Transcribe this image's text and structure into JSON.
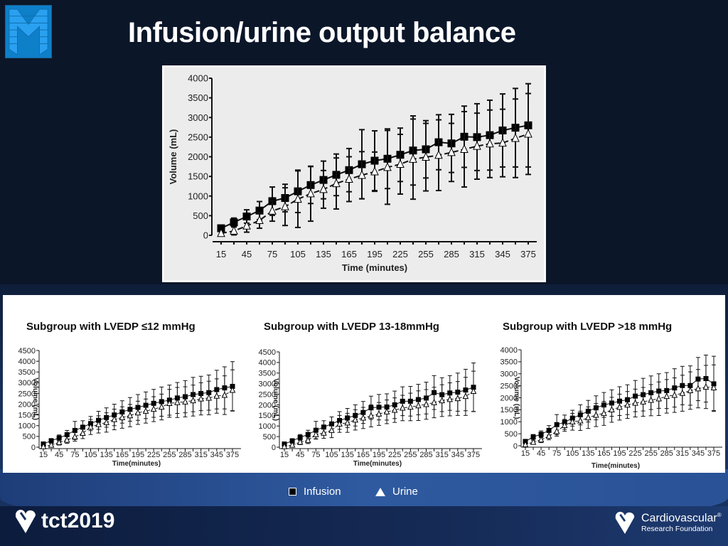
{
  "slide": {
    "title": "Infusion/urine output balance"
  },
  "legend": {
    "infusion": "Infusion",
    "urine": "Urine"
  },
  "logos": {
    "left_brand": "tct2019",
    "right_brand_line1": "Cardiovascular",
    "right_brand_line2": "Research Foundation",
    "registered": "®"
  },
  "colors": {
    "background": "#0b1629",
    "panel": "#ffffff",
    "series": "#000000",
    "logo_blue": "#0e7fc9"
  },
  "chart_data": [
    {
      "type": "line",
      "title": "",
      "xlabel": "Time (minutes)",
      "ylabel": "Volume (mL)",
      "ylim": [
        0,
        4000
      ],
      "yticks": [
        0,
        500,
        1000,
        1500,
        2000,
        2500,
        3000,
        3500,
        4000
      ],
      "xticks": [
        15,
        45,
        75,
        105,
        135,
        165,
        195,
        225,
        255,
        285,
        315,
        345,
        375
      ],
      "x": [
        15,
        30,
        45,
        60,
        75,
        90,
        105,
        120,
        135,
        150,
        165,
        180,
        195,
        210,
        225,
        240,
        255,
        270,
        285,
        300,
        315,
        330,
        345,
        360,
        375
      ],
      "series": [
        {
          "name": "Infusion",
          "marker": "filled-square",
          "line": "solid",
          "values": [
            180,
            330,
            480,
            630,
            870,
            950,
            1120,
            1280,
            1410,
            1540,
            1660,
            1810,
            1900,
            1950,
            2050,
            2160,
            2190,
            2370,
            2340,
            2510,
            2500,
            2550,
            2670,
            2740,
            2800
          ],
          "sd": [
            80,
            110,
            170,
            230,
            360,
            350,
            540,
            470,
            480,
            530,
            550,
            880,
            760,
            760,
            680,
            880,
            730,
            700,
            740,
            780,
            850,
            890,
            930,
            1000,
            1060
          ]
        },
        {
          "name": "Urine",
          "marker": "open-triangle",
          "line": "dashed",
          "values": [
            50,
            110,
            240,
            380,
            620,
            730,
            920,
            1060,
            1170,
            1320,
            1430,
            1530,
            1620,
            1730,
            1810,
            1940,
            1990,
            2040,
            2110,
            2190,
            2270,
            2330,
            2350,
            2470,
            2580
          ],
          "sd": [
            50,
            100,
            160,
            200,
            260,
            480,
            720,
            700,
            480,
            650,
            570,
            600,
            500,
            940,
            760,
            1020,
            860,
            900,
            740,
            960,
            840,
            860,
            860,
            1000,
            1030
          ]
        }
      ]
    },
    {
      "type": "line",
      "title": "Subgroup with LVEDP ≤12 mmHg",
      "xlabel": "Time(minutes)",
      "ylabel": "Volume (mL)",
      "ylim": [
        0,
        4500
      ],
      "yticks": [
        0,
        500,
        1000,
        1500,
        2000,
        2500,
        3000,
        3500,
        4000,
        4500
      ],
      "xticks": [
        15,
        45,
        75,
        105,
        135,
        165,
        195,
        225,
        255,
        285,
        315,
        345,
        375
      ],
      "x": [
        15,
        30,
        45,
        60,
        75,
        90,
        105,
        120,
        135,
        150,
        165,
        180,
        195,
        210,
        225,
        240,
        255,
        270,
        285,
        300,
        315,
        330,
        345,
        360,
        375
      ],
      "series": [
        {
          "name": "Infusion",
          "marker": "filled-square",
          "line": "solid",
          "values": [
            150,
            300,
            430,
            580,
            780,
            930,
            1100,
            1250,
            1380,
            1500,
            1640,
            1760,
            1850,
            1950,
            2040,
            2120,
            2190,
            2290,
            2350,
            2450,
            2500,
            2540,
            2680,
            2760,
            2830
          ],
          "sd": [
            60,
            100,
            140,
            200,
            420,
            300,
            330,
            420,
            450,
            500,
            520,
            550,
            600,
            620,
            650,
            680,
            700,
            720,
            750,
            800,
            800,
            820,
            900,
            980,
            1150
          ]
        },
        {
          "name": "Urine",
          "marker": "open-triangle",
          "line": "dashed",
          "values": [
            30,
            100,
            220,
            330,
            480,
            650,
            940,
            1060,
            1150,
            1290,
            1380,
            1470,
            1600,
            1680,
            1770,
            1870,
            2040,
            2080,
            2110,
            2170,
            2250,
            2290,
            2380,
            2420,
            2650
          ],
          "sd": [
            30,
            80,
            120,
            150,
            200,
            250,
            350,
            400,
            450,
            480,
            500,
            520,
            540,
            560,
            580,
            600,
            650,
            700,
            700,
            720,
            750,
            780,
            800,
            900,
            950
          ]
        }
      ]
    },
    {
      "type": "line",
      "title": "Subgroup with LVEDP 13-18mmHg",
      "xlabel": "Time(minutes)",
      "ylabel": "Volume (mL)",
      "ylim": [
        0,
        4500
      ],
      "yticks": [
        0,
        500,
        1000,
        1500,
        2000,
        2500,
        3000,
        3500,
        4000,
        4500
      ],
      "xticks": [
        15,
        45,
        75,
        105,
        135,
        165,
        195,
        225,
        255,
        285,
        315,
        345,
        375
      ],
      "x": [
        15,
        30,
        45,
        60,
        75,
        90,
        105,
        120,
        135,
        150,
        165,
        180,
        195,
        210,
        225,
        240,
        255,
        270,
        285,
        300,
        315,
        330,
        345,
        360,
        375
      ],
      "series": [
        {
          "name": "Infusion",
          "marker": "filled-square",
          "line": "solid",
          "values": [
            150,
            300,
            460,
            600,
            800,
            950,
            1100,
            1260,
            1380,
            1500,
            1640,
            1860,
            1890,
            1900,
            2000,
            2170,
            2170,
            2250,
            2320,
            2580,
            2480,
            2560,
            2600,
            2700,
            2830
          ],
          "sd": [
            60,
            100,
            140,
            200,
            420,
            300,
            330,
            420,
            450,
            500,
            520,
            550,
            600,
            620,
            650,
            680,
            700,
            720,
            750,
            800,
            800,
            820,
            900,
            980,
            1150
          ]
        },
        {
          "name": "Urine",
          "marker": "open-triangle",
          "line": "dashed",
          "values": [
            30,
            100,
            240,
            320,
            600,
            670,
            800,
            1100,
            1150,
            1290,
            1380,
            1480,
            1570,
            1670,
            1750,
            1850,
            1900,
            1960,
            2020,
            2110,
            2200,
            2260,
            2300,
            2400,
            2640
          ],
          "sd": [
            30,
            80,
            120,
            150,
            200,
            250,
            350,
            400,
            450,
            480,
            500,
            520,
            540,
            560,
            580,
            600,
            650,
            700,
            700,
            720,
            750,
            780,
            800,
            900,
            950
          ]
        }
      ]
    },
    {
      "type": "line",
      "title": "Subgroup with LVEDP >18 mmHg",
      "xlabel": "Time(minutes)",
      "ylabel": "Volume (mL)",
      "ylim": [
        0,
        4000
      ],
      "yticks": [
        0,
        500,
        1000,
        1500,
        2000,
        2500,
        3000,
        3500,
        4000
      ],
      "xticks": [
        15,
        45,
        75,
        105,
        135,
        165,
        195,
        225,
        255,
        285,
        315,
        345,
        375
      ],
      "x": [
        15,
        30,
        45,
        60,
        75,
        90,
        105,
        120,
        135,
        150,
        165,
        180,
        195,
        210,
        225,
        240,
        255,
        270,
        285,
        300,
        315,
        330,
        345,
        360,
        375
      ],
      "series": [
        {
          "name": "Infusion",
          "marker": "filled-square",
          "line": "solid",
          "values": [
            180,
            370,
            480,
            640,
            880,
            980,
            1150,
            1290,
            1440,
            1580,
            1700,
            1780,
            1860,
            1920,
            2070,
            2130,
            2210,
            2280,
            2300,
            2410,
            2510,
            2510,
            2780,
            2800,
            2580
          ],
          "sd": [
            60,
            100,
            140,
            200,
            420,
            300,
            330,
            420,
            450,
            500,
            520,
            550,
            600,
            620,
            650,
            680,
            700,
            720,
            750,
            800,
            800,
            820,
            900,
            980,
            1150
          ]
        },
        {
          "name": "Urine",
          "marker": "open-triangle",
          "line": "dashed",
          "values": [
            50,
            150,
            250,
            400,
            600,
            850,
            1000,
            1040,
            1170,
            1280,
            1350,
            1500,
            1610,
            1700,
            1780,
            1830,
            1900,
            1960,
            2060,
            2110,
            2190,
            2300,
            2380,
            2450,
            2420
          ],
          "sd": [
            30,
            80,
            120,
            150,
            200,
            250,
            350,
            400,
            450,
            480,
            500,
            520,
            540,
            560,
            580,
            600,
            650,
            700,
            700,
            720,
            750,
            780,
            800,
            900,
            950
          ]
        }
      ]
    }
  ]
}
